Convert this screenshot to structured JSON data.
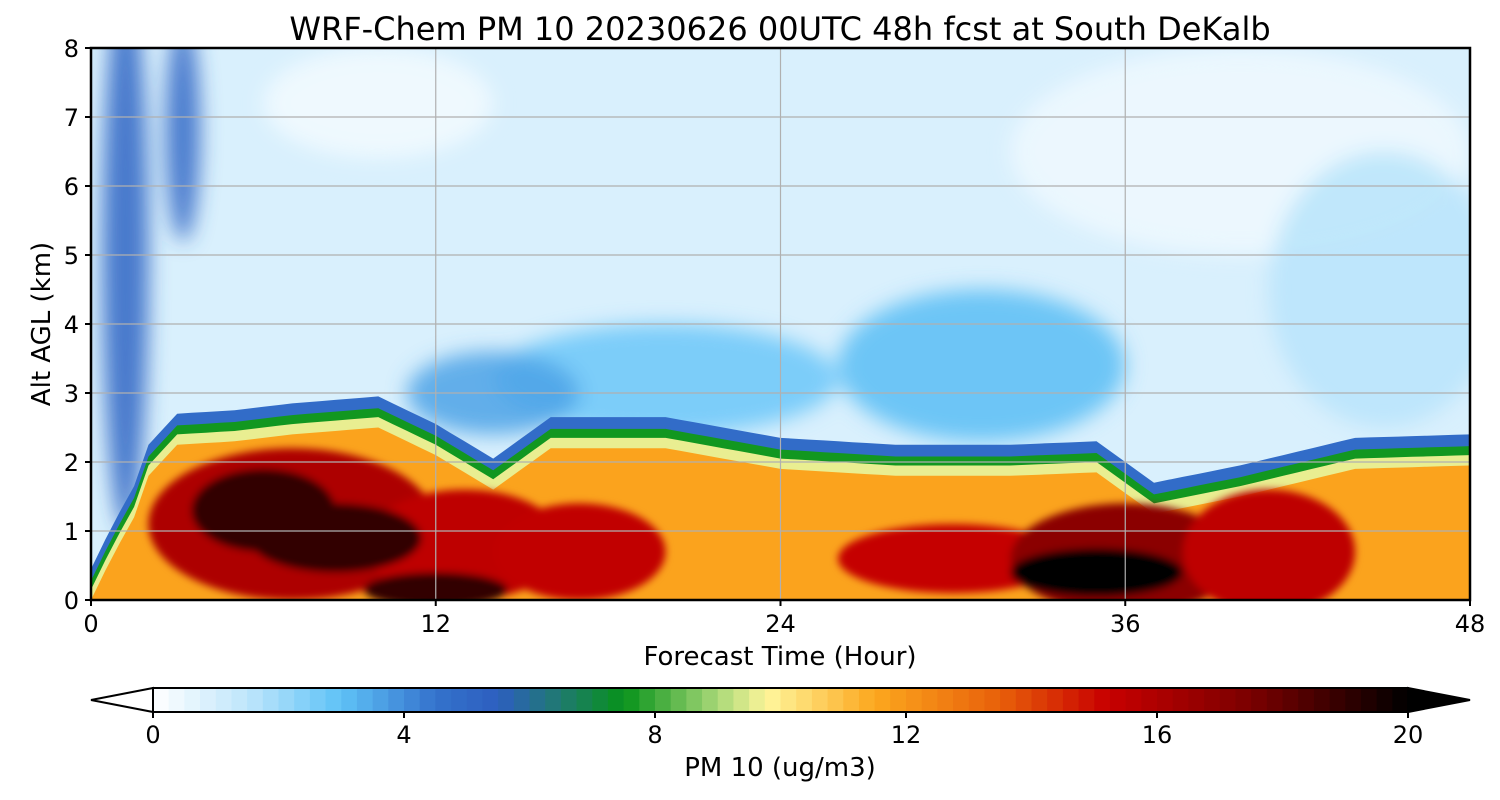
{
  "chart_data": {
    "type": "heatmap",
    "title": "WRF-Chem PM 10  20230626 00UTC 48h fcst at South DeKalb",
    "xlabel": "Forecast Time (Hour)",
    "ylabel": "Alt AGL (km)",
    "xlim": [
      0,
      48
    ],
    "ylim": [
      0,
      8
    ],
    "xticks": [
      "0",
      "12",
      "24",
      "36",
      "48"
    ],
    "yticks": [
      "0",
      "1",
      "2",
      "3",
      "4",
      "5",
      "6",
      "7",
      "8"
    ],
    "grid": true,
    "colorbar": {
      "label": "PM 10  (ug/m3)",
      "range": [
        0,
        20
      ],
      "extend": "both",
      "ticks": [
        "0",
        "4",
        "8",
        "12",
        "16",
        "20"
      ],
      "colors": [
        {
          "value": 0,
          "color": "#ffffff"
        },
        {
          "value": 1.5,
          "color": "#bfe6fb"
        },
        {
          "value": 3,
          "color": "#5ec2f7"
        },
        {
          "value": 4.5,
          "color": "#3472cc"
        },
        {
          "value": 5.5,
          "color": "#2d5fbf"
        },
        {
          "value": 6.5,
          "color": "#1f7a6e"
        },
        {
          "value": 7.5,
          "color": "#07921a"
        },
        {
          "value": 9.0,
          "color": "#a8d878"
        },
        {
          "value": 9.8,
          "color": "#fff59a"
        },
        {
          "value": 11.5,
          "color": "#fca71e"
        },
        {
          "value": 13.5,
          "color": "#e8600a"
        },
        {
          "value": 15.2,
          "color": "#c80000"
        },
        {
          "value": 17.5,
          "color": "#7a0000"
        },
        {
          "value": 20,
          "color": "#000000"
        }
      ]
    },
    "series": [
      {
        "name": "boundary_layer_top_km",
        "x": [
          0,
          0.7,
          1.5,
          2,
          3,
          5,
          7,
          10,
          12,
          14,
          16,
          20,
          24,
          28,
          32,
          35,
          37,
          40,
          44,
          48
        ],
        "values": [
          0.1,
          0.7,
          1.3,
          1.9,
          2.35,
          2.4,
          2.5,
          2.6,
          2.2,
          1.7,
          2.3,
          2.3,
          2.0,
          1.9,
          1.9,
          1.95,
          1.35,
          1.6,
          2.0,
          2.05
        ]
      },
      {
        "name": "core_max_values",
        "points": [
          {
            "x": 5,
            "y": 1.3,
            "value": 20
          },
          {
            "x": 8,
            "y": 0.9,
            "value": 20
          },
          {
            "x": 12,
            "y": 0.2,
            "value": 19
          },
          {
            "x": 35,
            "y": 0.4,
            "value": 20
          },
          {
            "x": 2,
            "y": 0.7,
            "value": 12
          },
          {
            "x": 22,
            "y": 1.5,
            "value": 12
          },
          {
            "x": 46,
            "y": 1.0,
            "value": 12
          }
        ]
      }
    ]
  }
}
